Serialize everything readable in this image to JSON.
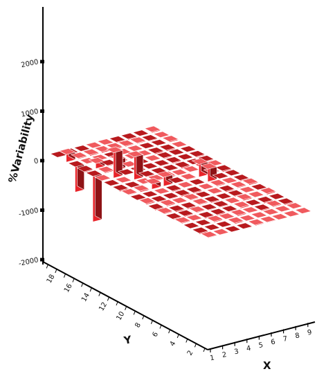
{
  "chart_data": {
    "type": "bar3d",
    "zlabel": "%Variability",
    "xlabel": "X",
    "ylabel": "Y",
    "zlim": [
      -2000,
      2000
    ],
    "z_ticks": [
      "2000",
      "1000",
      "0",
      "-1000",
      "-2000"
    ],
    "x_ticks": [
      "1",
      "2",
      "3",
      "4",
      "5",
      "6",
      "7",
      "8",
      "9"
    ],
    "y_ticks": [
      "2",
      "4",
      "6",
      "8",
      "10",
      "12",
      "14",
      "16",
      "18"
    ],
    "grid_x_count": 9,
    "grid_y_count": 18,
    "bar_color": "#e8242a",
    "notable_bars": [
      {
        "x": 1,
        "y": 16,
        "value": -1000
      },
      {
        "x": 1,
        "y": 14,
        "value": -1800
      },
      {
        "x": 1,
        "y": 17,
        "value": 300
      },
      {
        "x": 2,
        "y": 15,
        "value": 200
      },
      {
        "x": 2,
        "y": 13,
        "value": 1000
      },
      {
        "x": 3,
        "y": 14,
        "value": 400
      },
      {
        "x": 3,
        "y": 12,
        "value": 900
      },
      {
        "x": 4,
        "y": 10,
        "value": 350
      },
      {
        "x": 3,
        "y": 10,
        "value": 200
      },
      {
        "x": 7,
        "y": 10,
        "value": 500
      },
      {
        "x": 7,
        "y": 9,
        "value": 500
      }
    ]
  }
}
